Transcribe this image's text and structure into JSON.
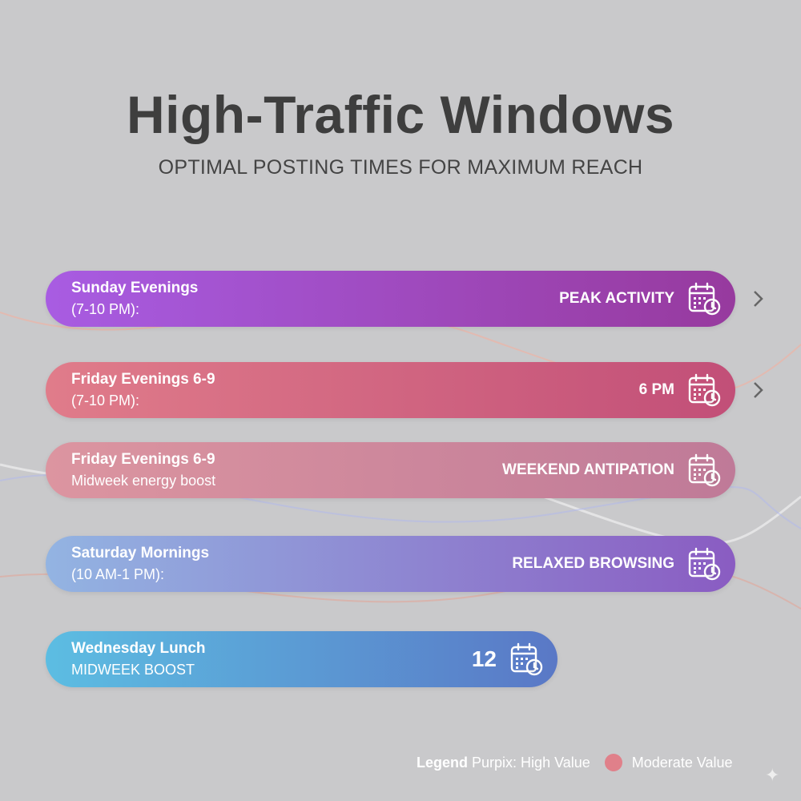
{
  "header": {
    "title": "High-Traffic Windows",
    "subtitle": "OPTIMAL POSTING TIMES FOR MAXIMUM REACH"
  },
  "rows": [
    {
      "line1": "Sunday Evenings",
      "line2": "(7-10 PM):",
      "label": "PEAK ACTIVITY",
      "icon": "calendar-clock-icon",
      "colors": [
        "#a85ce2",
        "#973a9e"
      ],
      "chevron": true
    },
    {
      "line1": "Friday Evenings 6-9",
      "line2": "(7-10 PM):",
      "label": "6 PM",
      "icon": "calendar-clock-icon",
      "colors": [
        "#e07c8a",
        "#c24f78"
      ],
      "chevron": true
    },
    {
      "line1": "Friday Evenings 6-9",
      "line2": "Midweek energy boost",
      "label": "WEEKEND ANTIPATION",
      "icon": "calendar-clock-icon",
      "colors": [
        "#dc95a0",
        "#bf7a98"
      ],
      "chevron": false
    },
    {
      "line1": "Saturday Mornings",
      "line2": "(10 AM-1 PM):",
      "label": "RELAXED BROWSING",
      "icon": "calendar-clock-icon",
      "colors": [
        "#93b4e2",
        "#8a5cc2"
      ],
      "chevron": false
    },
    {
      "line1": "Wednesday Lunch",
      "line2": "MIDWEEK BOOST",
      "label": "12",
      "icon": "calendar-clock-icon",
      "colors": [
        "#5cbde2",
        "#5a78c6"
      ],
      "chevron": false
    }
  ],
  "legend": {
    "title": "Legend",
    "high": "Purpix: High Value",
    "moderate": "Moderate Value",
    "moderate_color": "#e0808a"
  }
}
